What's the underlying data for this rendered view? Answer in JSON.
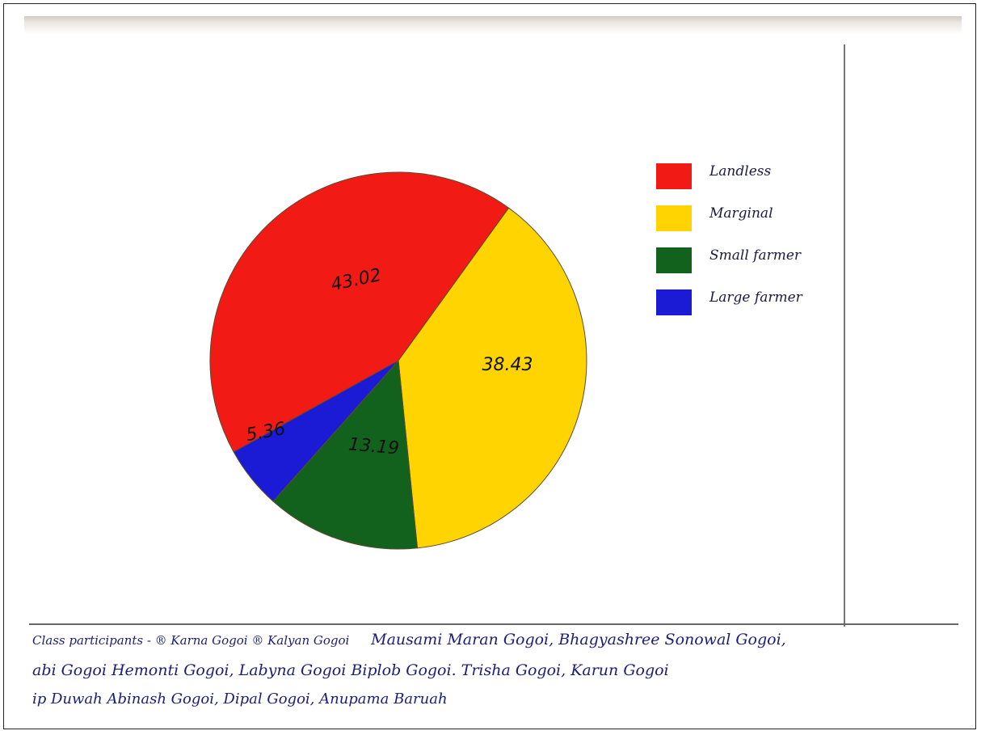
{
  "chart_data": {
    "type": "pie",
    "title": "",
    "slices": [
      {
        "label": "Landless",
        "value": 43.02,
        "value_text": "43.02",
        "color": "#f21a14"
      },
      {
        "label": "Marginal",
        "value": 38.43,
        "value_text": "38.43",
        "color": "#ffd400"
      },
      {
        "label": "Small farmer",
        "value": 13.19,
        "value_text": "13.19",
        "color": "#12621e"
      },
      {
        "label": "Large farmer",
        "value": 5.36,
        "value_text": "5.36",
        "color": "#1b1bd6"
      }
    ],
    "legend_placement": "right"
  },
  "legend": {
    "items": [
      {
        "label": "Landless",
        "color": "#f21a14"
      },
      {
        "label": "Marginal",
        "color": "#ffd400"
      },
      {
        "label": "Small farmer",
        "color": "#12621e"
      },
      {
        "label": "Large farmer",
        "color": "#1b1bd6"
      }
    ]
  },
  "participants": {
    "line1_prefix": "Class participants - ® Karna Gogoi ® Kalyan Gogoi",
    "line1_rest": "Mausami Maran Gogoi, Bhagyashree Sonowal Gogoi,",
    "line2": "abi Gogoi Hemonti Gogoi, Labyna Gogoi Biplob Gogoi. Trisha Gogoi, Karun Gogoi",
    "line3": "ip Duwah Abinash Gogoi, Dipal Gogoi, Anupama Baruah"
  }
}
